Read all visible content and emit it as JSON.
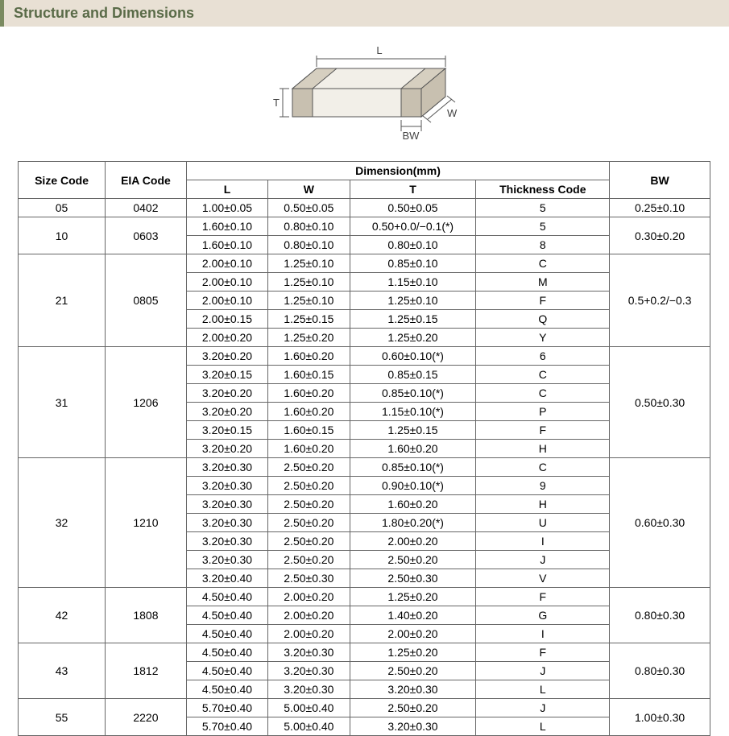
{
  "title": "Structure and Dimensions",
  "diagram": {
    "labels": {
      "L": "L",
      "W": "W",
      "T": "T",
      "BW": "BW"
    },
    "body_fill": "#f2efe8",
    "outline": "#555555",
    "terminal_fill": "#c8c0b0"
  },
  "table": {
    "dim_unit_label": "Dimension(mm)",
    "headers": {
      "size": "Size Code",
      "eia": "EIA Code",
      "L": "L",
      "W": "W",
      "T": "T",
      "thick": "Thickness  Code",
      "BW": "BW"
    },
    "groups": [
      {
        "size": "05",
        "eia": "0402",
        "bw": "0.25±0.10",
        "rows": [
          {
            "L": "1.00±0.05",
            "W": "0.50±0.05",
            "T": "0.50±0.05",
            "th": "5"
          }
        ]
      },
      {
        "size": "10",
        "eia": "0603",
        "bw": "0.30±0.20",
        "rows": [
          {
            "L": "1.60±0.10",
            "W": "0.80±0.10",
            "T": "0.50+0.0/−0.1(*)",
            "th": "5"
          },
          {
            "L": "1.60±0.10",
            "W": "0.80±0.10",
            "T": "0.80±0.10",
            "th": "8"
          }
        ]
      },
      {
        "size": "21",
        "eia": "0805",
        "bw": "0.5+0.2/−0.3",
        "rows": [
          {
            "L": "2.00±0.10",
            "W": "1.25±0.10",
            "T": "0.85±0.10",
            "th": "C"
          },
          {
            "L": "2.00±0.10",
            "W": "1.25±0.10",
            "T": "1.15±0.10",
            "th": "M"
          },
          {
            "L": "2.00±0.10",
            "W": "1.25±0.10",
            "T": "1.25±0.10",
            "th": "F"
          },
          {
            "L": "2.00±0.15",
            "W": "1.25±0.15",
            "T": "1.25±0.15",
            "th": "Q"
          },
          {
            "L": "2.00±0.20",
            "W": "1.25±0.20",
            "T": "1.25±0.20",
            "th": "Y"
          }
        ]
      },
      {
        "size": "31",
        "eia": "1206",
        "bw": "0.50±0.30",
        "rows": [
          {
            "L": "3.20±0.20",
            "W": "1.60±0.20",
            "T": "0.60±0.10(*)",
            "th": "6"
          },
          {
            "L": "3.20±0.15",
            "W": "1.60±0.15",
            "T": "0.85±0.15",
            "th": "C"
          },
          {
            "L": "3.20±0.20",
            "W": "1.60±0.20",
            "T": "0.85±0.10(*)",
            "th": "C"
          },
          {
            "L": "3.20±0.20",
            "W": "1.60±0.20",
            "T": "1.15±0.10(*)",
            "th": "P"
          },
          {
            "L": "3.20±0.15",
            "W": "1.60±0.15",
            "T": "1.25±0.15",
            "th": "F"
          },
          {
            "L": "3.20±0.20",
            "W": "1.60±0.20",
            "T": "1.60±0.20",
            "th": "H"
          }
        ]
      },
      {
        "size": "32",
        "eia": "1210",
        "bw": "0.60±0.30",
        "rows": [
          {
            "L": "3.20±0.30",
            "W": "2.50±0.20",
            "T": "0.85±0.10(*)",
            "th": "C"
          },
          {
            "L": "3.20±0.30",
            "W": "2.50±0.20",
            "T": "0.90±0.10(*)",
            "th": "9"
          },
          {
            "L": "3.20±0.30",
            "W": "2.50±0.20",
            "T": "1.60±0.20",
            "th": "H"
          },
          {
            "L": "3.20±0.30",
            "W": "2.50±0.20",
            "T": "1.80±0.20(*)",
            "th": "U"
          },
          {
            "L": "3.20±0.30",
            "W": "2.50±0.20",
            "T": "2.00±0.20",
            "th": "I"
          },
          {
            "L": "3.20±0.30",
            "W": "2.50±0.20",
            "T": "2.50±0.20",
            "th": "J"
          },
          {
            "L": "3.20±0.40",
            "W": "2.50±0.30",
            "T": "2.50±0.30",
            "th": "V"
          }
        ]
      },
      {
        "size": "42",
        "eia": "1808",
        "bw": "0.80±0.30",
        "rows": [
          {
            "L": "4.50±0.40",
            "W": "2.00±0.20",
            "T": "1.25±0.20",
            "th": "F"
          },
          {
            "L": "4.50±0.40",
            "W": "2.00±0.20",
            "T": "1.40±0.20",
            "th": "G"
          },
          {
            "L": "4.50±0.40",
            "W": "2.00±0.20",
            "T": "2.00±0.20",
            "th": "I"
          }
        ]
      },
      {
        "size": "43",
        "eia": "1812",
        "bw": "0.80±0.30",
        "rows": [
          {
            "L": "4.50±0.40",
            "W": "3.20±0.30",
            "T": "1.25±0.20",
            "th": "F"
          },
          {
            "L": "4.50±0.40",
            "W": "3.20±0.30",
            "T": "2.50±0.20",
            "th": "J"
          },
          {
            "L": "4.50±0.40",
            "W": "3.20±0.30",
            "T": "3.20±0.30",
            "th": "L"
          }
        ]
      },
      {
        "size": "55",
        "eia": "2220",
        "bw": "1.00±0.30",
        "rows": [
          {
            "L": "5.70±0.40",
            "W": "5.00±0.40",
            "T": "2.50±0.20",
            "th": "J"
          },
          {
            "L": "5.70±0.40",
            "W": "5.00±0.40",
            "T": "3.20±0.30",
            "th": "L"
          }
        ]
      }
    ]
  }
}
